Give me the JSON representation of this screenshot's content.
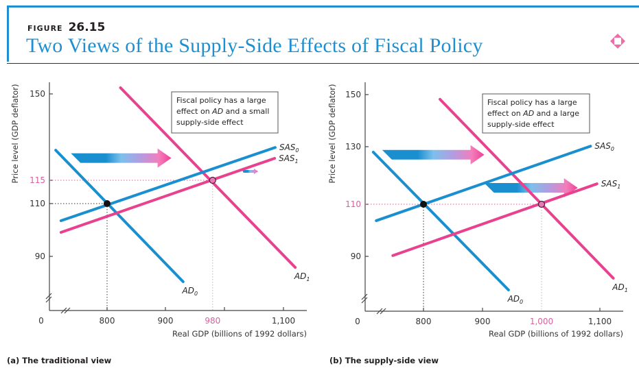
{
  "figure": {
    "label": "FIGURE",
    "number": "26.15",
    "title": "Two Views of the Supply-Side Effects of Fiscal Policy",
    "icon": "diamond-icon",
    "colors": {
      "title": "#1f8fd1",
      "blue_curve": "#1a8fd0",
      "pink_curve": "#e8428f",
      "pink_text": "#d9609e",
      "icon": "#f06ba8"
    }
  },
  "chart_data": [
    {
      "type": "line",
      "panel_caption": "(a) The traditional view",
      "xlabel": "Real GDP (billions of 1992 dollars)",
      "ylabel": "Price level (GDP deflator)",
      "x_ticks": [
        {
          "value": 800,
          "label": "800",
          "highlight": false
        },
        {
          "value": 900,
          "label": "900",
          "highlight": false
        },
        {
          "value": 980,
          "label": "980",
          "highlight": true,
          "tick_mark": false
        },
        {
          "value": 1000,
          "label": "",
          "highlight": false
        },
        {
          "value": 1100,
          "label": "1,100",
          "highlight": false
        }
      ],
      "x_origin_label": "0",
      "y_ticks": [
        {
          "value": 150,
          "label": "150",
          "highlight": false
        },
        {
          "value": 115,
          "label": "115",
          "highlight": true
        },
        {
          "value": 110,
          "label": "110",
          "highlight": false
        },
        {
          "value": 90,
          "label": "90",
          "highlight": false
        }
      ],
      "axis_breaks": true,
      "annotation": {
        "lines": [
          "Fiscal policy has a large",
          "effect on AD and a small",
          "supply-side effect"
        ]
      },
      "series": [
        {
          "name": "AD",
          "sub": "0",
          "color": "blue",
          "points": [
            [
              712,
              127.2
            ],
            [
              930,
              80.4
            ]
          ],
          "label_at": "end-below"
        },
        {
          "name": "AD",
          "sub": "1",
          "color": "pink",
          "points": [
            [
              823,
              152.5
            ],
            [
              1120,
              85.8
            ]
          ],
          "label_at": "end-below"
        },
        {
          "name": "SAS",
          "sub": "0",
          "color": "blue",
          "points": [
            [
              721,
              103.5
            ],
            [
              1086,
              128.3
            ]
          ],
          "label_at": "end-right"
        },
        {
          "name": "SAS",
          "sub": "1",
          "color": "pink",
          "points": [
            [
              721,
              99.1
            ],
            [
              1085,
              123.9
            ]
          ],
          "label_at": "end-right"
        }
      ],
      "equilibria": [
        {
          "x": 800,
          "y": 110,
          "style": "initial"
        },
        {
          "x": 980,
          "y": 115,
          "style": "new"
        }
      ],
      "shift_arrows": [
        {
          "from": [
            738,
            124
          ],
          "to": [
            910,
            124
          ],
          "size": "large",
          "meaning": "AD shift"
        },
        {
          "from": [
            1030,
            118.6
          ],
          "to": [
            1057,
            118.6
          ],
          "size": "small",
          "meaning": "SAS shift"
        }
      ]
    },
    {
      "type": "line",
      "panel_caption": "(b) The supply-side view",
      "xlabel": "Real GDP (billions of 1992 dollars)",
      "ylabel": "Price level (GDP deflator)",
      "x_ticks": [
        {
          "value": 800,
          "label": "800",
          "highlight": false
        },
        {
          "value": 900,
          "label": "900",
          "highlight": false
        },
        {
          "value": 1000,
          "label": "1,000",
          "highlight": true,
          "tick_mark": false
        },
        {
          "value": 1100,
          "label": "1,100",
          "highlight": false
        }
      ],
      "x_origin_label": "0",
      "y_ticks": [
        {
          "value": 150,
          "label": "150",
          "highlight": false
        },
        {
          "value": 130,
          "label": "130",
          "highlight": false
        },
        {
          "value": 110,
          "label": "110",
          "highlight": true
        },
        {
          "value": 90,
          "label": "90",
          "highlight": false
        }
      ],
      "axis_breaks": true,
      "annotation": {
        "lines": [
          "Fiscal policy has a large",
          "effect on AD and a large",
          "supply-side effect"
        ]
      },
      "series": [
        {
          "name": "AD",
          "sub": "0",
          "color": "blue",
          "points": [
            [
              715,
              128.1
            ],
            [
              944,
              77.1
            ]
          ],
          "label_at": "end-below"
        },
        {
          "name": "AD",
          "sub": "1",
          "color": "pink",
          "points": [
            [
              828,
              148.2
            ],
            [
              1123,
              81.6
            ]
          ],
          "label_at": "end-below"
        },
        {
          "name": "SAS",
          "sub": "0",
          "color": "blue",
          "points": [
            [
              720,
              103.7
            ],
            [
              1084,
              130.2
            ]
          ],
          "label_at": "end-right"
        },
        {
          "name": "SAS",
          "sub": "1",
          "color": "pink",
          "points": [
            [
              748,
              90.3
            ],
            [
              1095,
              117.1
            ]
          ],
          "label_at": "end-right"
        }
      ],
      "equilibria": [
        {
          "x": 800,
          "y": 110,
          "style": "initial"
        },
        {
          "x": 1000,
          "y": 110,
          "style": "new"
        }
      ],
      "shift_arrows": [
        {
          "from": [
            730,
            127.2
          ],
          "to": [
            903,
            127.2
          ],
          "size": "large",
          "meaning": "AD shift"
        },
        {
          "from": [
            903,
            115.7
          ],
          "to": [
            1062,
            115.7
          ],
          "size": "large",
          "meaning": "SAS shift"
        }
      ]
    }
  ]
}
